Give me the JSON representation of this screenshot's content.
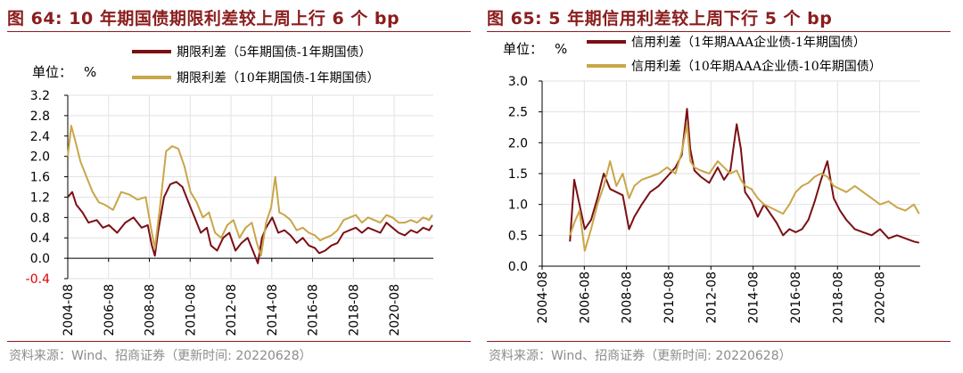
{
  "colors": {
    "series1": "#7b0f14",
    "series2": "#c9a648",
    "title": "#8b1d1d",
    "negative_tick": "#e00000",
    "source": "#8c8c8c"
  },
  "chart_data": [
    {
      "type": "line",
      "title": "图 64: 10 年期国债期限利差较上周上行 6 个 bp",
      "unit_label": "单位：",
      "unit": "%",
      "xlabel": "",
      "ylabel": "%",
      "ylim": [
        -0.4,
        3.2
      ],
      "y_ticks": [
        -0.4,
        0.0,
        0.4,
        0.8,
        1.2,
        1.6,
        2.0,
        2.4,
        2.8,
        3.2
      ],
      "y_tick_labels": [
        "-0.4",
        "0.0",
        "0.4",
        "0.8",
        "1.2",
        "1.6",
        "2.0",
        "2.4",
        "2.8",
        "3.2"
      ],
      "x_range": [
        2004.58,
        2022.5
      ],
      "x_tick_labels": [
        "2004-08",
        "2006-08",
        "2008-08",
        "2010-08",
        "2012-08",
        "2014-08",
        "2016-08",
        "2018-08",
        "2020-08"
      ],
      "x_ticks": [
        2004.58,
        2006.58,
        2008.58,
        2010.58,
        2012.58,
        2014.58,
        2016.58,
        2018.58,
        2020.58
      ],
      "legend_position": "top-right",
      "series": [
        {
          "name": "期限利差（5年期国债-1年期国债）",
          "color": "#7b0f14",
          "x": [
            2004.58,
            2004.8,
            2005.0,
            2005.3,
            2005.6,
            2006.0,
            2006.3,
            2006.6,
            2007.0,
            2007.4,
            2007.8,
            2008.2,
            2008.5,
            2008.7,
            2008.85,
            2009.0,
            2009.3,
            2009.6,
            2009.9,
            2010.2,
            2010.5,
            2010.8,
            2011.1,
            2011.4,
            2011.6,
            2011.9,
            2012.2,
            2012.5,
            2012.8,
            2013.1,
            2013.4,
            2013.7,
            2013.9,
            2014.1,
            2014.3,
            2014.6,
            2014.9,
            2015.2,
            2015.5,
            2015.8,
            2016.1,
            2016.4,
            2016.7,
            2016.9,
            2017.2,
            2017.5,
            2017.8,
            2018.1,
            2018.4,
            2018.7,
            2019.0,
            2019.3,
            2019.6,
            2019.9,
            2020.2,
            2020.5,
            2020.8,
            2021.1,
            2021.4,
            2021.7,
            2022.0,
            2022.3,
            2022.45
          ],
          "values": [
            1.2,
            1.3,
            1.05,
            0.9,
            0.7,
            0.75,
            0.6,
            0.65,
            0.5,
            0.7,
            0.8,
            0.6,
            0.65,
            0.25,
            0.05,
            0.5,
            1.2,
            1.45,
            1.5,
            1.4,
            1.1,
            0.8,
            0.5,
            0.6,
            0.25,
            0.15,
            0.4,
            0.5,
            0.15,
            0.3,
            0.4,
            0.1,
            -0.1,
            0.4,
            0.6,
            0.8,
            0.5,
            0.55,
            0.45,
            0.3,
            0.4,
            0.25,
            0.2,
            0.1,
            0.15,
            0.25,
            0.3,
            0.5,
            0.55,
            0.6,
            0.5,
            0.6,
            0.55,
            0.5,
            0.7,
            0.6,
            0.5,
            0.45,
            0.55,
            0.5,
            0.6,
            0.55,
            0.65
          ]
        },
        {
          "name": "期限利差（10年期国债-1年期国债）",
          "color": "#c9a648",
          "x": [
            2004.58,
            2004.75,
            2004.95,
            2005.2,
            2005.5,
            2005.8,
            2006.1,
            2006.4,
            2006.8,
            2007.2,
            2007.6,
            2008.0,
            2008.4,
            2008.7,
            2008.85,
            2009.1,
            2009.4,
            2009.7,
            2010.0,
            2010.3,
            2010.6,
            2010.9,
            2011.2,
            2011.5,
            2011.8,
            2012.1,
            2012.4,
            2012.7,
            2013.0,
            2013.3,
            2013.6,
            2013.85,
            2014.05,
            2014.3,
            2014.55,
            2014.75,
            2014.95,
            2015.2,
            2015.5,
            2015.8,
            2016.1,
            2016.4,
            2016.7,
            2016.95,
            2017.2,
            2017.5,
            2017.8,
            2018.1,
            2018.4,
            2018.7,
            2019.0,
            2019.3,
            2019.6,
            2019.9,
            2020.2,
            2020.5,
            2020.8,
            2021.1,
            2021.4,
            2021.7,
            2022.0,
            2022.3,
            2022.45
          ],
          "values": [
            2.0,
            2.6,
            2.3,
            1.9,
            1.6,
            1.3,
            1.1,
            1.05,
            0.95,
            1.3,
            1.25,
            1.15,
            1.2,
            0.5,
            0.2,
            1.0,
            2.1,
            2.2,
            2.15,
            1.8,
            1.3,
            1.1,
            0.8,
            0.9,
            0.5,
            0.4,
            0.65,
            0.75,
            0.4,
            0.6,
            0.7,
            0.3,
            0.05,
            0.7,
            1.0,
            1.6,
            0.9,
            0.85,
            0.75,
            0.55,
            0.6,
            0.5,
            0.45,
            0.35,
            0.4,
            0.45,
            0.55,
            0.75,
            0.8,
            0.85,
            0.7,
            0.8,
            0.75,
            0.7,
            0.85,
            0.8,
            0.7,
            0.7,
            0.75,
            0.7,
            0.8,
            0.75,
            0.85
          ]
        }
      ]
    },
    {
      "type": "line",
      "title": "图 65: 5 年期信用利差较上周下行 5 个 bp",
      "unit_label": "单位：",
      "unit": "%",
      "xlabel": "",
      "ylabel": "%",
      "ylim": [
        0.0,
        3.0
      ],
      "y_ticks": [
        0.0,
        0.5,
        1.0,
        1.5,
        2.0,
        2.5,
        3.0
      ],
      "y_tick_labels": [
        "0.0",
        "0.5",
        "1.0",
        "1.5",
        "2.0",
        "2.5",
        "3.0"
      ],
      "x_range": [
        2004.58,
        2022.5
      ],
      "x_tick_labels": [
        "2004-08",
        "2006-08",
        "2008-08",
        "2010-08",
        "2012-08",
        "2014-08",
        "2016-08",
        "2018-08",
        "2020-08"
      ],
      "x_ticks": [
        2004.58,
        2006.58,
        2008.58,
        2010.58,
        2012.58,
        2014.58,
        2016.58,
        2018.58,
        2020.58
      ],
      "legend_position": "top",
      "series": [
        {
          "name": "信用利差（1年期AAA企业债-1年期国债）",
          "color": "#7b0f14",
          "x": [
            2005.9,
            2006.1,
            2006.35,
            2006.6,
            2006.9,
            2007.2,
            2007.5,
            2007.8,
            2008.1,
            2008.4,
            2008.7,
            2008.95,
            2009.3,
            2009.7,
            2010.1,
            2010.5,
            2010.9,
            2011.2,
            2011.45,
            2011.6,
            2011.8,
            2012.1,
            2012.5,
            2012.9,
            2013.2,
            2013.5,
            2013.8,
            2014.0,
            2014.2,
            2014.5,
            2014.8,
            2015.1,
            2015.4,
            2015.7,
            2016.0,
            2016.3,
            2016.6,
            2016.9,
            2017.2,
            2017.5,
            2017.8,
            2018.1,
            2018.4,
            2018.7,
            2019.0,
            2019.4,
            2019.8,
            2020.2,
            2020.6,
            2021.0,
            2021.4,
            2021.8,
            2022.2,
            2022.45
          ],
          "values": [
            0.4,
            1.4,
            1.0,
            0.6,
            0.75,
            1.1,
            1.5,
            1.25,
            1.2,
            1.15,
            0.6,
            0.8,
            1.0,
            1.2,
            1.3,
            1.45,
            1.6,
            1.8,
            2.55,
            1.9,
            1.55,
            1.45,
            1.35,
            1.6,
            1.4,
            1.55,
            2.3,
            1.9,
            1.2,
            1.05,
            0.8,
            1.0,
            0.85,
            0.7,
            0.5,
            0.6,
            0.55,
            0.6,
            0.75,
            1.05,
            1.4,
            1.7,
            1.1,
            0.9,
            0.75,
            0.6,
            0.55,
            0.5,
            0.6,
            0.45,
            0.5,
            0.45,
            0.4,
            0.38
          ]
        },
        {
          "name": "信用利差（10年期AAA企业债-10年期国债）",
          "color": "#c9a648",
          "x": [
            2005.9,
            2006.1,
            2006.35,
            2006.6,
            2006.9,
            2007.2,
            2007.5,
            2007.8,
            2008.1,
            2008.4,
            2008.7,
            2008.95,
            2009.3,
            2009.7,
            2010.1,
            2010.5,
            2010.9,
            2011.2,
            2011.45,
            2011.6,
            2011.8,
            2012.1,
            2012.5,
            2012.9,
            2013.2,
            2013.5,
            2013.8,
            2014.0,
            2014.2,
            2014.5,
            2014.8,
            2015.1,
            2015.4,
            2015.7,
            2016.0,
            2016.3,
            2016.6,
            2016.9,
            2017.2,
            2017.5,
            2017.8,
            2018.1,
            2018.4,
            2018.7,
            2019.0,
            2019.4,
            2019.8,
            2020.2,
            2020.6,
            2021.0,
            2021.4,
            2021.8,
            2022.2,
            2022.45
          ],
          "values": [
            0.5,
            0.7,
            0.9,
            0.25,
            0.6,
            1.0,
            1.3,
            1.7,
            1.3,
            1.5,
            1.1,
            1.3,
            1.4,
            1.45,
            1.5,
            1.6,
            1.5,
            1.85,
            2.3,
            1.7,
            1.6,
            1.55,
            1.5,
            1.7,
            1.6,
            1.5,
            1.55,
            1.4,
            1.3,
            1.25,
            1.1,
            1.0,
            0.95,
            0.9,
            0.85,
            1.0,
            1.2,
            1.3,
            1.35,
            1.45,
            1.5,
            1.45,
            1.3,
            1.25,
            1.2,
            1.3,
            1.2,
            1.1,
            1.0,
            1.05,
            0.95,
            0.9,
            1.0,
            0.85
          ]
        }
      ]
    }
  ],
  "source": "资料来源：Wind、招商证券（更新时间: 20220628）"
}
